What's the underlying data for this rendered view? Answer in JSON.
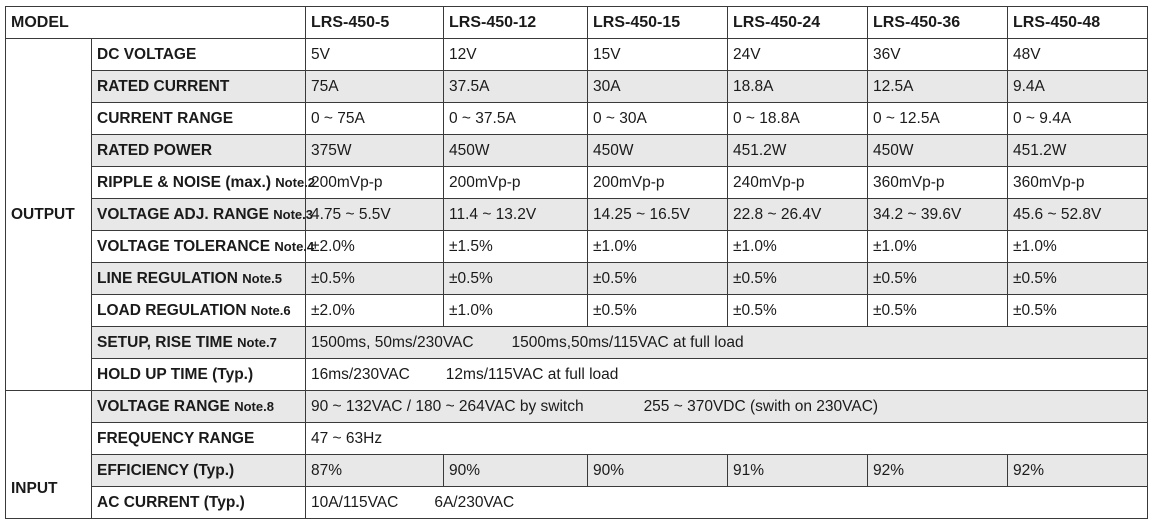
{
  "header": {
    "model_label": "MODEL",
    "models": [
      "LRS-450-5",
      "LRS-450-12",
      "LRS-450-15",
      "LRS-450-24",
      "LRS-450-36",
      "LRS-450-48"
    ]
  },
  "groups": {
    "output": "OUTPUT",
    "input": "INPUT"
  },
  "output_rows": [
    {
      "param": "DC VOLTAGE",
      "note": "",
      "values": [
        "5V",
        "12V",
        "15V",
        "24V",
        "36V",
        "48V"
      ]
    },
    {
      "param": "RATED CURRENT",
      "note": "",
      "values": [
        "75A",
        "37.5A",
        "30A",
        "18.8A",
        "12.5A",
        "9.4A"
      ]
    },
    {
      "param": "CURRENT RANGE",
      "note": "",
      "values": [
        "0 ~ 75A",
        "0 ~ 37.5A",
        "0 ~ 30A",
        "0 ~ 18.8A",
        "0 ~ 12.5A",
        "0 ~ 9.4A"
      ]
    },
    {
      "param": "RATED POWER",
      "note": "",
      "values": [
        "375W",
        "450W",
        "450W",
        "451.2W",
        "450W",
        "451.2W"
      ]
    },
    {
      "param": "RIPPLE & NOISE (max.)",
      "note": "Note.2",
      "values": [
        "200mVp-p",
        "200mVp-p",
        "200mVp-p",
        "240mVp-p",
        "360mVp-p",
        "360mVp-p"
      ]
    },
    {
      "param": "VOLTAGE ADJ. RANGE",
      "note": "Note.3",
      "values": [
        "4.75 ~ 5.5V",
        "11.4 ~ 13.2V",
        "14.25 ~ 16.5V",
        "22.8 ~ 26.4V",
        "34.2 ~ 39.6V",
        "45.6 ~ 52.8V"
      ]
    },
    {
      "param": "VOLTAGE TOLERANCE",
      "note": "Note.4",
      "values": [
        "±2.0%",
        "±1.5%",
        "±1.0%",
        "±1.0%",
        "±1.0%",
        "±1.0%"
      ]
    },
    {
      "param": "LINE REGULATION",
      "note": "Note.5",
      "values": [
        "±0.5%",
        "±0.5%",
        "±0.5%",
        "±0.5%",
        "±0.5%",
        "±0.5%"
      ]
    },
    {
      "param": "LOAD REGULATION",
      "note": "Note.6",
      "values": [
        "±2.0%",
        "±1.0%",
        "±0.5%",
        "±0.5%",
        "±0.5%",
        "±0.5%"
      ]
    }
  ],
  "setup": {
    "param": "SETUP, RISE TIME",
    "note": "Note.7",
    "part1": "1500ms, 50ms/230VAC",
    "part2": "1500ms,50ms/115VAC  at full load"
  },
  "holdup": {
    "param": "HOLD UP TIME (Typ.)",
    "part1": "16ms/230VAC",
    "part2": "12ms/115VAC at full load"
  },
  "voltage_range": {
    "param": "VOLTAGE RANGE",
    "note": "Note.8",
    "part1": "90 ~ 132VAC / 180 ~ 264VAC by switch",
    "part2": "255 ~ 370VDC (swith on 230VAC)"
  },
  "frequency_range": {
    "param": "FREQUENCY RANGE",
    "value": "47 ~ 63Hz"
  },
  "efficiency": {
    "param": "EFFICIENCY (Typ.)",
    "values": [
      "87%",
      "90%",
      "90%",
      "91%",
      "92%",
      "92%"
    ]
  },
  "ac_current": {
    "param": "AC CURRENT (Typ.)",
    "part1": "10A/115VAC",
    "part2": "6A/230VAC"
  }
}
